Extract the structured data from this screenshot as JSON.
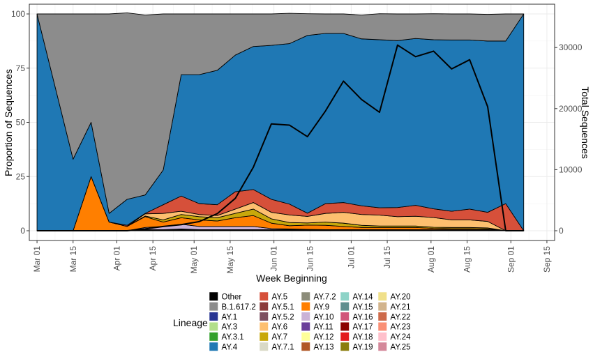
{
  "chart_data": {
    "type": "area",
    "subtype": "stacked-area-with-line",
    "xlabel": "Week Beginning",
    "ylabel_left": "Proportion of Sequences",
    "ylabel_right": "Total Sequences",
    "x_ticks": [
      "Mar 01",
      "Mar 15",
      "Apr 01",
      "Apr 15",
      "May 01",
      "May 15",
      "Jun 01",
      "Jun 15",
      "Jul 01",
      "Jul 15",
      "Aug 01",
      "Aug 15",
      "Sep 01",
      "Sep 15"
    ],
    "y_left_ticks": [
      "0",
      "25",
      "50",
      "75",
      "100"
    ],
    "y_left_lim": [
      0,
      100
    ],
    "y_right_ticks": [
      "0",
      "10000",
      "20000",
      "30000"
    ],
    "y_right_lim": [
      0,
      35500
    ],
    "grid": true,
    "legend_title": "Lineage",
    "legend_position": "bottom",
    "weeks": [
      "2021-03-01",
      "2021-03-15",
      "2021-03-22",
      "2021-03-29",
      "2021-04-05",
      "2021-04-12",
      "2021-04-19",
      "2021-04-26",
      "2021-05-03",
      "2021-05-10",
      "2021-05-17",
      "2021-05-24",
      "2021-05-31",
      "2021-06-07",
      "2021-06-14",
      "2021-06-21",
      "2021-06-28",
      "2021-07-05",
      "2021-07-12",
      "2021-07-19",
      "2021-07-26",
      "2021-08-02",
      "2021-08-09",
      "2021-08-16",
      "2021-08-23",
      "2021-08-30",
      "2021-09-06"
    ],
    "series": [
      {
        "name": "Other",
        "color": "#000000",
        "values": [
          0,
          0,
          0,
          0,
          0,
          0.5,
          0.5,
          0.8,
          0.5,
          0.5,
          0.5,
          0.5,
          0.5,
          0.5,
          0.3,
          0.3,
          0.3,
          0.3,
          0.3,
          0.3,
          0.3,
          0.3,
          0.3,
          0.3,
          0.3,
          0,
          0
        ]
      },
      {
        "name": "AY.10",
        "color": "#cab2d6",
        "values": [
          0,
          0,
          0,
          0,
          0,
          1,
          1.5,
          2.2,
          1.5,
          1.5,
          1.5,
          1.5,
          0.5,
          0.3,
          0.3,
          0.2,
          0.2,
          0.2,
          0.2,
          0.2,
          0.2,
          0.2,
          0.2,
          0.2,
          0.2,
          0,
          0
        ]
      },
      {
        "name": "AY.9",
        "color": "#ff7f00",
        "values": [
          0,
          0,
          25,
          4,
          2,
          5,
          2,
          3,
          3,
          2.5,
          4,
          5,
          2.5,
          1.5,
          2,
          2,
          1.5,
          1,
          1,
          1,
          1,
          0.6,
          0.5,
          0.5,
          0.4,
          0,
          0
        ]
      },
      {
        "name": "AY.7",
        "color": "#c8a80b",
        "values": [
          0,
          0,
          0,
          0,
          0,
          0.3,
          1,
          1.5,
          1.5,
          1.5,
          2,
          3,
          2,
          1.5,
          1,
          1.5,
          1.5,
          1,
          0.7,
          0.7,
          0.7,
          0.5,
          0.5,
          0.5,
          0.4,
          0,
          0
        ]
      },
      {
        "name": "AY.6",
        "color": "#fdbf6f",
        "values": [
          0,
          0,
          0,
          0,
          0,
          1,
          3,
          1.5,
          1,
          1,
          2,
          3,
          3,
          3.5,
          3,
          4,
          5,
          5,
          5,
          4.3,
          4.5,
          4.5,
          3.5,
          3.5,
          3,
          0,
          0
        ]
      },
      {
        "name": "AY.5",
        "color": "#d6503a",
        "values": [
          0,
          0,
          0,
          0,
          0.5,
          0.2,
          4,
          7,
          5,
          5,
          8,
          6,
          6,
          5,
          1.5,
          4.5,
          4.5,
          4,
          3.4,
          4.2,
          5,
          4,
          4,
          5,
          4.2,
          12.5,
          0
        ]
      },
      {
        "name": "AY.4",
        "color": "#1f78b4",
        "values": [
          100,
          33,
          25,
          4,
          12,
          8.5,
          16,
          56,
          59.5,
          62,
          63,
          66,
          71,
          74,
          82,
          78.5,
          78,
          77,
          77.5,
          77,
          77,
          78,
          79,
          78,
          79,
          75,
          100
        ]
      },
      {
        "name": "B.1.617.2",
        "color": "#8c8c8c",
        "values": [
          0,
          67,
          50,
          92,
          86,
          83,
          72,
          28,
          28,
          26,
          19,
          15,
          14.5,
          14,
          10,
          9,
          9,
          11,
          12,
          12.3,
          11.3,
          12,
          12,
          12,
          12.3,
          12.5,
          0
        ]
      }
    ],
    "total_sequences": [
      0,
      0,
      0,
      0,
      0,
      300,
      700,
      1000,
      1500,
      2800,
      5300,
      10400,
      17500,
      17300,
      15400,
      19600,
      24500,
      21500,
      19400,
      30400,
      28500,
      29400,
      26500,
      28000,
      20300,
      0,
      0
    ],
    "legend": [
      {
        "name": "Other",
        "color": "#000000"
      },
      {
        "name": "B.1.617.2",
        "color": "#8c8c8c"
      },
      {
        "name": "AY.1",
        "color": "#283593"
      },
      {
        "name": "AY.3",
        "color": "#b2df8a"
      },
      {
        "name": "AY.3.1",
        "color": "#33a02c"
      },
      {
        "name": "AY.4",
        "color": "#1f78b4"
      },
      {
        "name": "AY.5",
        "color": "#d6503a"
      },
      {
        "name": "AY.5.1",
        "color": "#8b3a3a"
      },
      {
        "name": "AY.5.2",
        "color": "#7d4f60"
      },
      {
        "name": "AY.6",
        "color": "#fdbf6f"
      },
      {
        "name": "AY.7",
        "color": "#c8a80b"
      },
      {
        "name": "AY.7.1",
        "color": "#d9d9c6"
      },
      {
        "name": "AY.7.2",
        "color": "#8c8c7a"
      },
      {
        "name": "AY.9",
        "color": "#ff7f00"
      },
      {
        "name": "AY.10",
        "color": "#cab2d6"
      },
      {
        "name": "AY.11",
        "color": "#6a3d9a"
      },
      {
        "name": "AY.12",
        "color": "#ffff99"
      },
      {
        "name": "AY.13",
        "color": "#b15928"
      },
      {
        "name": "AY.14",
        "color": "#8dd3c7"
      },
      {
        "name": "AY.15",
        "color": "#5f8f8f"
      },
      {
        "name": "AY.16",
        "color": "#d1557a"
      },
      {
        "name": "AY.17",
        "color": "#8b0000"
      },
      {
        "name": "AY.18",
        "color": "#e31a1c"
      },
      {
        "name": "AY.19",
        "color": "#8b7d0d"
      },
      {
        "name": "AY.20",
        "color": "#f0e08a"
      },
      {
        "name": "AY.21",
        "color": "#d2b48c"
      },
      {
        "name": "AY.22",
        "color": "#cd6a4a"
      },
      {
        "name": "AY.23",
        "color": "#fa8f75"
      },
      {
        "name": "AY.24",
        "color": "#ffc0cb"
      },
      {
        "name": "AY.25",
        "color": "#d4889a"
      }
    ]
  }
}
